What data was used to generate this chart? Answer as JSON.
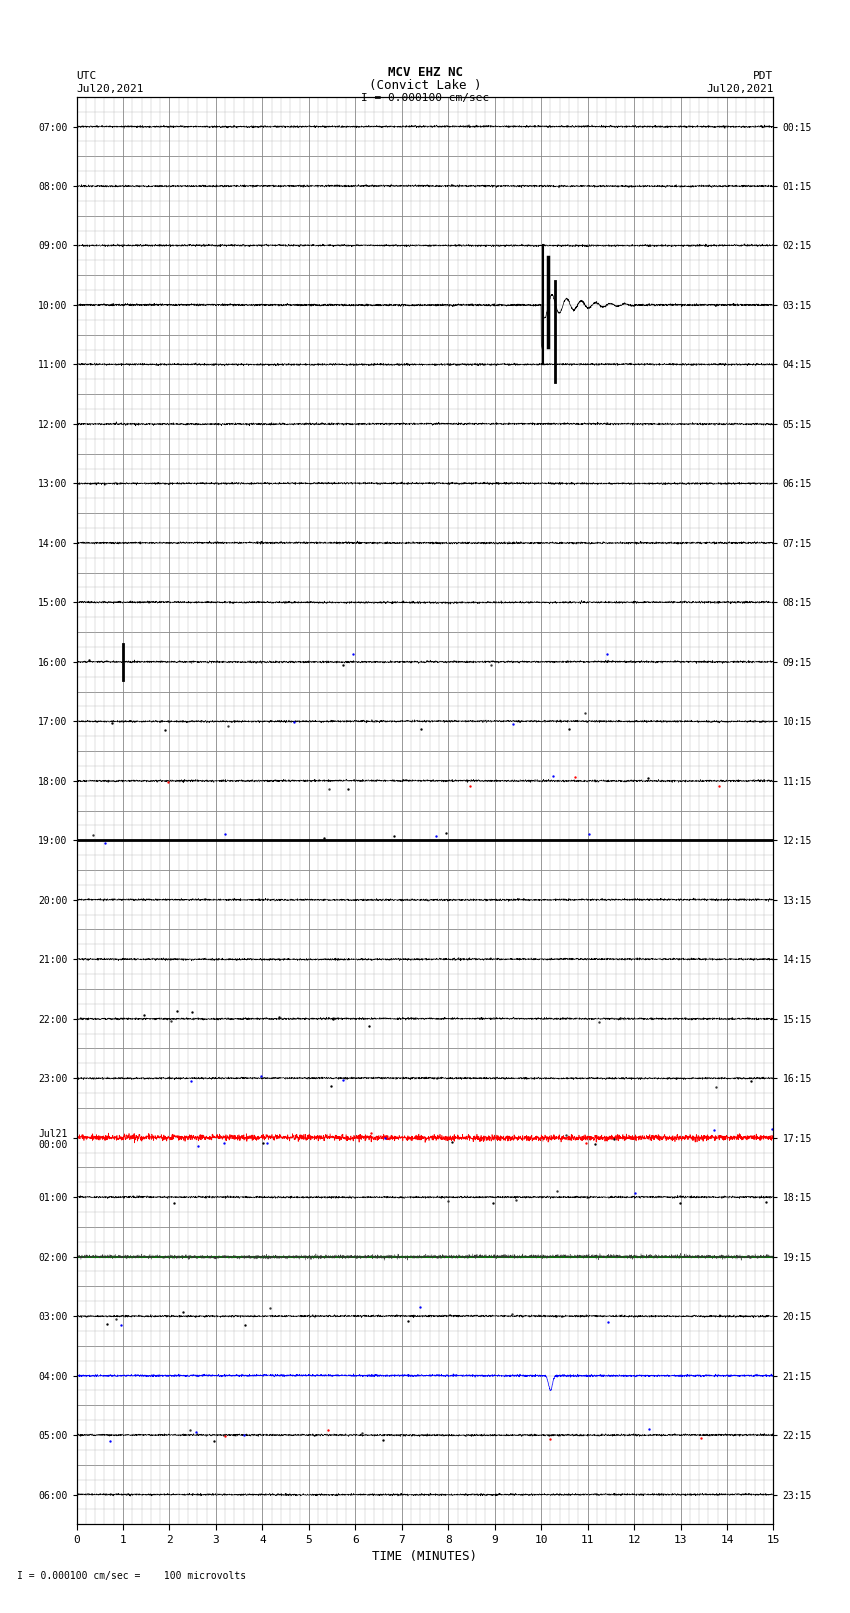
{
  "title_line1": "MCV EHZ NC",
  "title_line2": "(Convict Lake )",
  "title_line3": "I = 0.000100 cm/sec",
  "left_label_top": "UTC",
  "left_label_date": "Jul20,2021",
  "right_label_top": "PDT",
  "right_label_date": "Jul20,2021",
  "xlabel": "TIME (MINUTES)",
  "bottom_note": "= 0.000100 cm/sec =    100 microvolts",
  "utc_times": [
    "07:00",
    "08:00",
    "09:00",
    "10:00",
    "11:00",
    "12:00",
    "13:00",
    "14:00",
    "15:00",
    "16:00",
    "17:00",
    "18:00",
    "19:00",
    "20:00",
    "21:00",
    "22:00",
    "23:00",
    "Jul21\n00:00",
    "01:00",
    "02:00",
    "03:00",
    "04:00",
    "05:00",
    "06:00"
  ],
  "pdt_times": [
    "00:15",
    "01:15",
    "02:15",
    "03:15",
    "04:15",
    "05:15",
    "06:15",
    "07:15",
    "08:15",
    "09:15",
    "10:15",
    "11:15",
    "12:15",
    "13:15",
    "14:15",
    "15:15",
    "16:15",
    "17:15",
    "18:15",
    "19:15",
    "20:15",
    "21:15",
    "22:15",
    "23:15"
  ],
  "n_rows": 24,
  "n_cols": 15,
  "noise_amplitude": 0.008,
  "bg_color": "#ffffff",
  "grid_color": "#888888",
  "minor_grid_color": "#bbbbbb",
  "signal_color": "#000000",
  "eq_row": 3,
  "eq_col": 10.0,
  "eq_amplitude": 0.8,
  "green_line_row": 19,
  "thick_black_row": 12,
  "black_mark_row": 9,
  "black_mark_col": 1.0,
  "blue_spike_row": 21,
  "blue_spike_col": 10.2,
  "red_line_row": 17
}
